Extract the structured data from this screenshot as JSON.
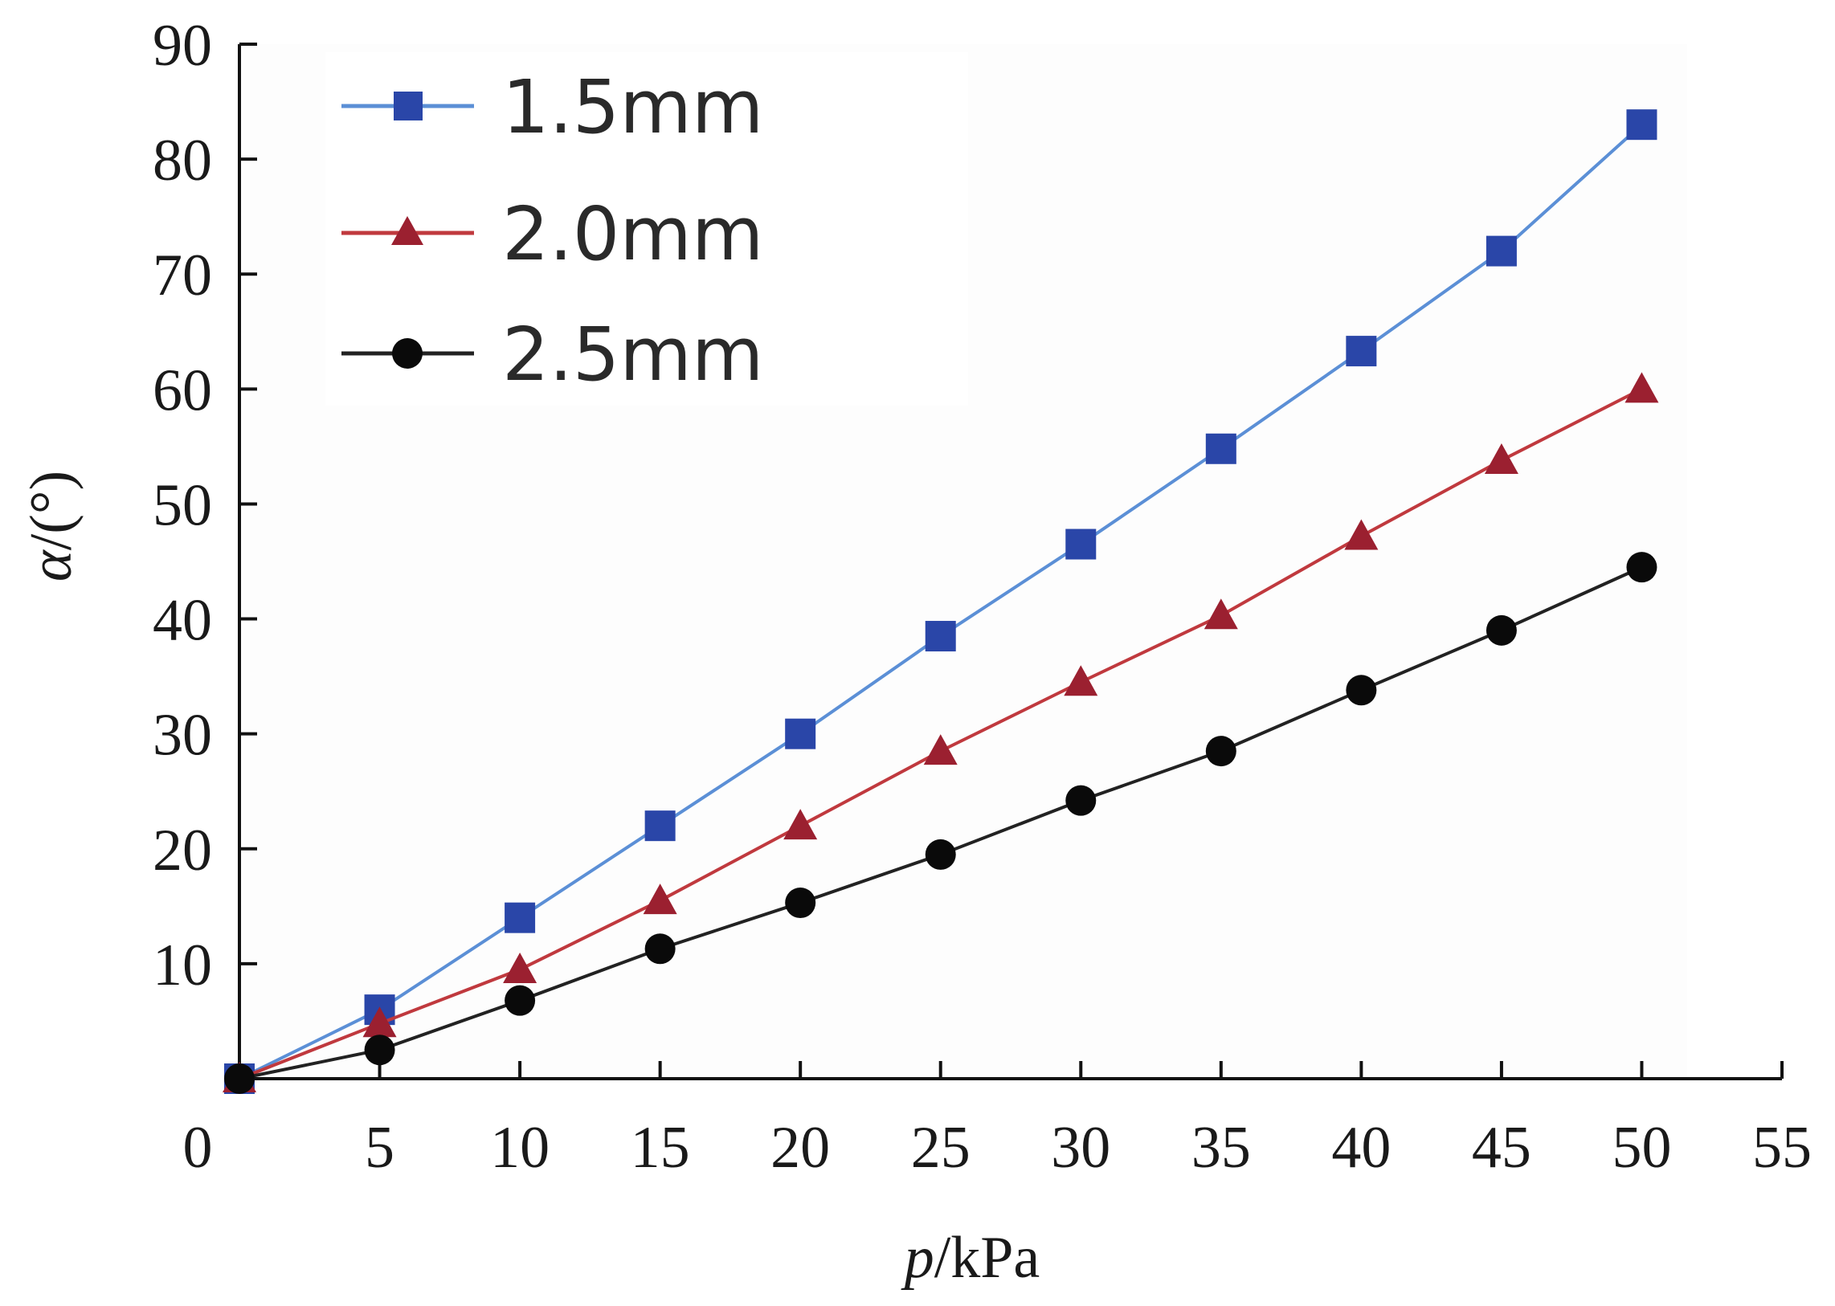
{
  "chart_data": {
    "type": "line",
    "title": "",
    "xlabel_italic": "p",
    "xlabel_rest": "/kPa",
    "ylabel_italic": "α",
    "ylabel_rest": "/(°)",
    "xlim": [
      0,
      55
    ],
    "ylim": [
      0,
      90
    ],
    "x_ticks": [
      0,
      5,
      10,
      15,
      20,
      25,
      30,
      35,
      40,
      45,
      50,
      55
    ],
    "y_ticks": [
      10,
      20,
      30,
      40,
      50,
      60,
      70,
      80,
      90
    ],
    "x": [
      0,
      5,
      10,
      15,
      20,
      25,
      30,
      35,
      40,
      45,
      50
    ],
    "legend_position": "top-left",
    "grid": false,
    "series": [
      {
        "name": "1.5mm",
        "color": "#5b8fd6",
        "marker_color": "#2a46a8",
        "marker": "square",
        "values": [
          0,
          6.0,
          14.0,
          22.0,
          30.0,
          38.5,
          46.5,
          54.8,
          63.3,
          72.0,
          83.0
        ]
      },
      {
        "name": "2.0mm",
        "color": "#c0393e",
        "marker_color": "#9b2030",
        "marker": "triangle",
        "values": [
          0,
          4.8,
          9.5,
          15.5,
          22.0,
          28.5,
          34.5,
          40.3,
          47.2,
          53.8,
          60.0
        ]
      },
      {
        "name": "2.5mm",
        "color": "#222222",
        "marker_color": "#0a0a0a",
        "marker": "circle",
        "values": [
          0,
          2.5,
          6.8,
          11.3,
          15.3,
          19.5,
          24.2,
          28.5,
          33.8,
          39.0,
          44.5
        ]
      }
    ]
  }
}
